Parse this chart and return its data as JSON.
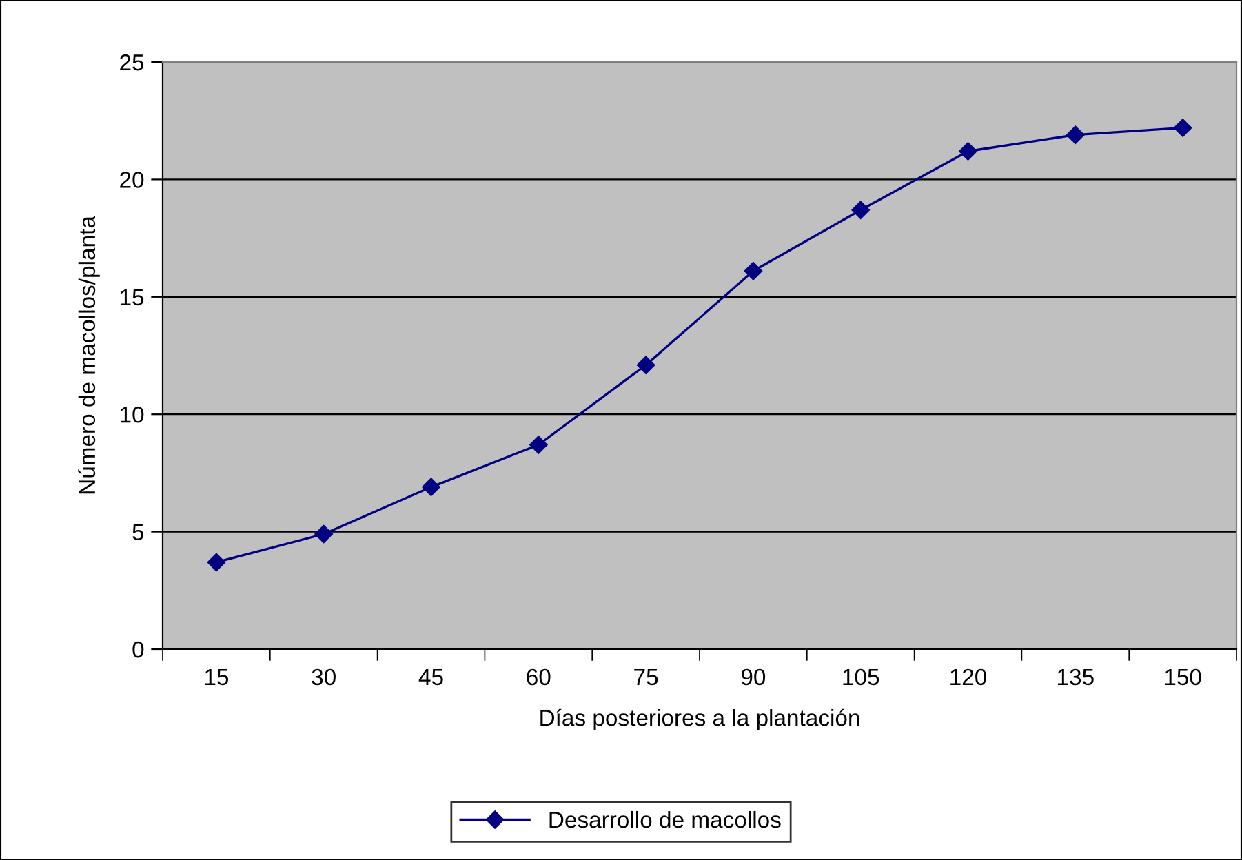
{
  "chart_data": {
    "type": "line",
    "xlabel": "Días posteriores a la plantación",
    "ylabel": "Número de macollos/planta",
    "categories": [
      "15",
      "30",
      "45",
      "60",
      "75",
      "90",
      "105",
      "120",
      "135",
      "150"
    ],
    "series": [
      {
        "name": "Desarrollo de macollos",
        "color": "#000080",
        "values": [
          3.7,
          4.9,
          6.9,
          8.7,
          12.1,
          16.1,
          18.7,
          21.2,
          21.9,
          22.2
        ]
      }
    ],
    "ylim": [
      0,
      25
    ],
    "yticks": [
      0,
      5,
      10,
      15,
      20,
      25
    ],
    "grid": "y",
    "legend": "bottom",
    "marker": "diamond",
    "line_style": "solid"
  }
}
